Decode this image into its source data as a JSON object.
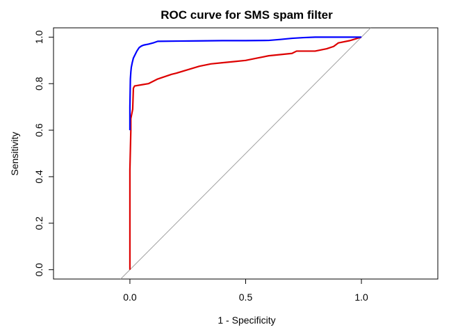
{
  "chart_data": {
    "type": "line",
    "title": "ROC curve for SMS spam filter",
    "xlabel": "1 - Specificity",
    "ylabel": "Sensitivity",
    "xlim": [
      -0.33,
      1.33
    ],
    "ylim": [
      -0.04,
      1.04
    ],
    "x_ticks": [
      {
        "value": 0.0,
        "label": "0.0"
      },
      {
        "value": 0.5,
        "label": "0.5"
      },
      {
        "value": 1.0,
        "label": "1.0"
      }
    ],
    "y_ticks": [
      {
        "value": 0.0,
        "label": "0.0"
      },
      {
        "value": 0.2,
        "label": "0.2"
      },
      {
        "value": 0.4,
        "label": "0.4"
      },
      {
        "value": 0.6,
        "label": "0.6"
      },
      {
        "value": 0.8,
        "label": "0.8"
      },
      {
        "value": 1.0,
        "label": "1.0"
      }
    ],
    "grid": false,
    "reference_line": {
      "x": [
        -0.04,
        1.04
      ],
      "y": [
        -0.04,
        1.04
      ],
      "color": "#a0a0a0"
    },
    "series": [
      {
        "color": "#0000ff",
        "x": [
          0.0,
          0.0,
          0.002,
          0.004,
          0.006,
          0.01,
          0.015,
          0.02,
          0.03,
          0.04,
          0.05,
          0.06,
          0.08,
          0.1,
          0.12,
          0.2,
          0.3,
          0.4,
          0.5,
          0.6,
          0.65,
          0.7,
          0.75,
          0.8,
          0.9,
          1.0
        ],
        "y": [
          0.6,
          0.7,
          0.82,
          0.85,
          0.87,
          0.89,
          0.91,
          0.92,
          0.94,
          0.955,
          0.962,
          0.966,
          0.97,
          0.975,
          0.982,
          0.983,
          0.984,
          0.985,
          0.985,
          0.986,
          0.99,
          0.995,
          0.998,
          1.0,
          1.0,
          1.0
        ]
      },
      {
        "color": "#dd0000",
        "x": [
          0.0,
          0.0,
          0.004,
          0.004,
          0.008,
          0.012,
          0.015,
          0.02,
          0.05,
          0.08,
          0.1,
          0.12,
          0.15,
          0.18,
          0.2,
          0.25,
          0.3,
          0.35,
          0.4,
          0.45,
          0.5,
          0.55,
          0.6,
          0.7,
          0.72,
          0.8,
          0.85,
          0.88,
          0.9,
          0.95,
          1.0
        ],
        "y": [
          0.0,
          0.43,
          0.6,
          0.65,
          0.67,
          0.69,
          0.78,
          0.79,
          0.795,
          0.8,
          0.81,
          0.82,
          0.83,
          0.84,
          0.845,
          0.86,
          0.875,
          0.885,
          0.89,
          0.895,
          0.9,
          0.91,
          0.92,
          0.93,
          0.94,
          0.94,
          0.95,
          0.96,
          0.975,
          0.985,
          1.0
        ]
      }
    ]
  }
}
